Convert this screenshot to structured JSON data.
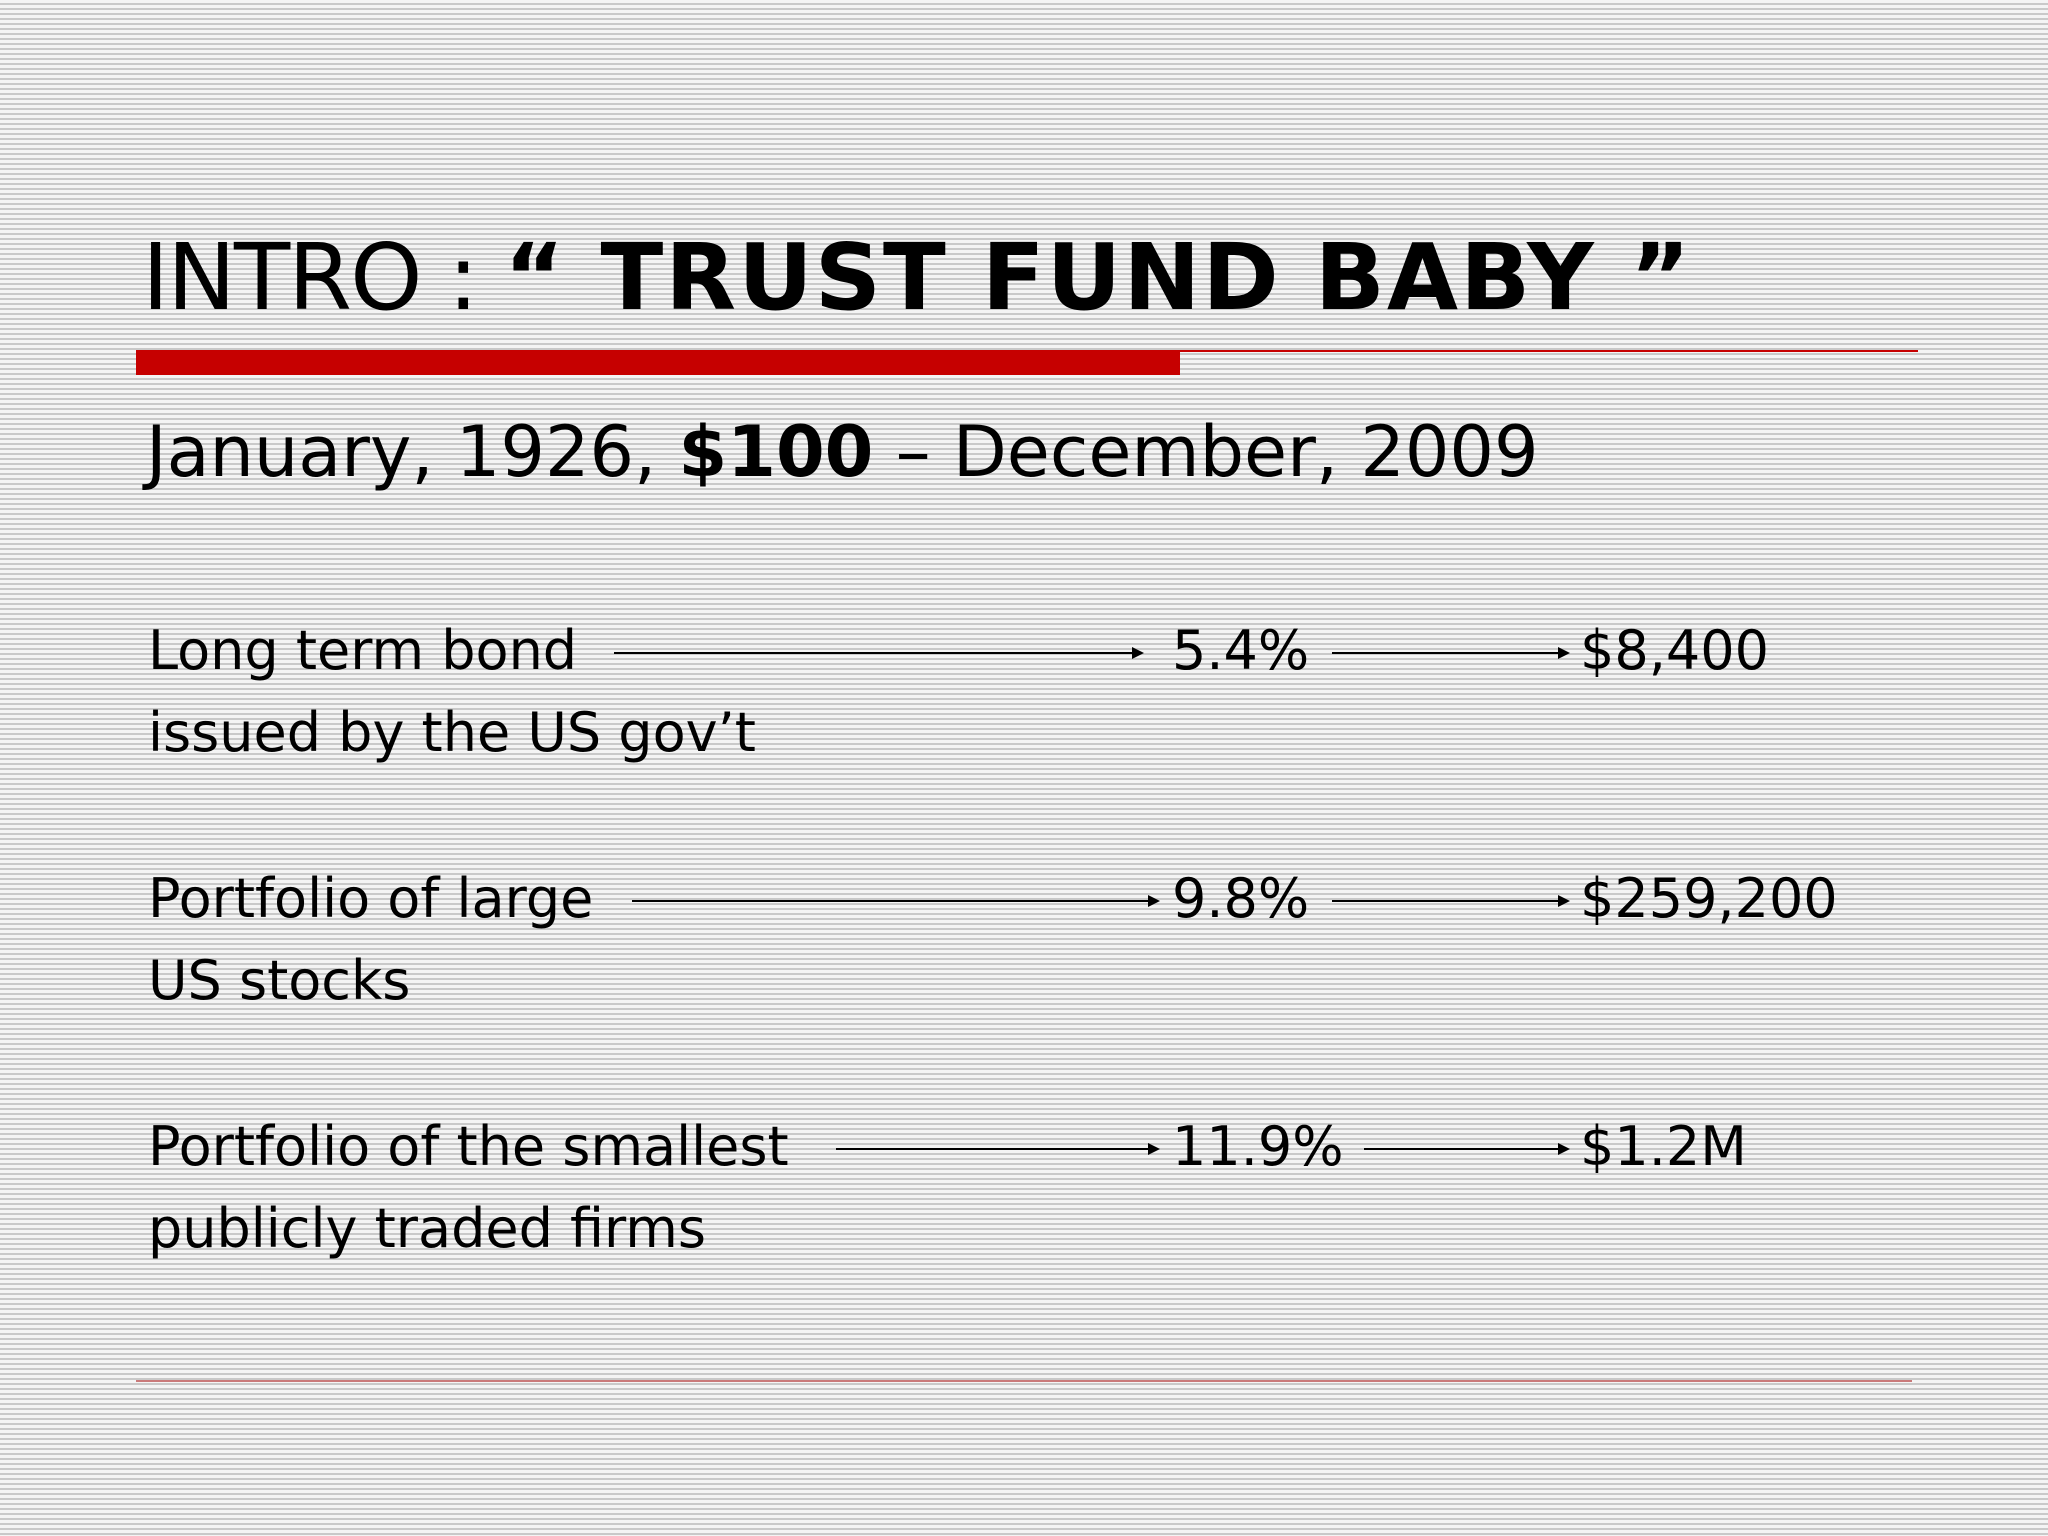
{
  "title": {
    "prefix": "INTRO : ",
    "emphasis": "“ TRUST FUND BABY ”"
  },
  "subtitle": {
    "start": "January, 1926, ",
    "amount": "$100",
    "end": " – December, 2009"
  },
  "rows": [
    {
      "line1": "Long term bond",
      "line2": "issued by the US gov’t",
      "rate": "5.4%",
      "amount": "$8,400"
    },
    {
      "line1": "Portfolio of large",
      "line2": "US stocks",
      "rate": "9.8%",
      "amount": "$259,200"
    },
    {
      "line1": "Portfolio of the smallest",
      "line2": "publicly traded firms",
      "rate": "11.9%",
      "amount": "$1.2M"
    }
  ],
  "colors": {
    "accent": "#c60000",
    "text": "#000000",
    "background": "#f2f2f2"
  },
  "icons": [
    "right-arrow-icon"
  ]
}
